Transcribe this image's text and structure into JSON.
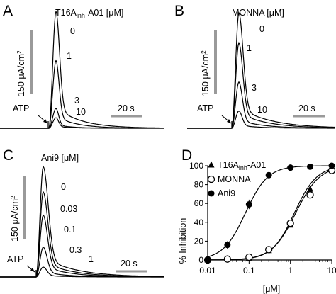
{
  "panels": [
    {
      "letter": "A",
      "title": "T16A",
      "title_sub": "inh",
      "title_rest": "-A01 [μM]",
      "scale_y": "150 μA/cm",
      "scale_y_sup": "2",
      "scale_x": "20 s",
      "stimulus": "ATP",
      "trace_labels": [
        "0",
        "1",
        "3",
        "10"
      ],
      "peaks_fraction": [
        1.0,
        0.58,
        0.17,
        0.09
      ]
    },
    {
      "letter": "B",
      "title": "MONNA [μM]",
      "scale_y": "150 μA/cm",
      "scale_y_sup": "2",
      "scale_x": "20 s",
      "stimulus": "ATP",
      "trace_labels": [
        "0",
        "1",
        "3",
        "10"
      ],
      "peaks_fraction": [
        1.0,
        0.74,
        0.4,
        0.15
      ]
    },
    {
      "letter": "C",
      "title": "Ani9 [μM]",
      "scale_y": "150 μA/cm",
      "scale_y_sup": "2",
      "scale_x": "20 s",
      "stimulus": "ATP",
      "trace_labels": [
        "0",
        "0.03",
        "0.1",
        "0.3",
        "1"
      ],
      "peaks_fraction": [
        1.0,
        0.77,
        0.56,
        0.27,
        0.09
      ]
    }
  ],
  "chart_data": {
    "type": "scatter",
    "panel_letter": "D",
    "xlabel": "[μM]",
    "ylabel": "% Inhibition",
    "xscale": "log",
    "xlim": [
      0.01,
      10
    ],
    "ylim": [
      0,
      100
    ],
    "xticks": [
      "0.01",
      "0.1",
      "1",
      "10"
    ],
    "yticks": [
      "0",
      "20",
      "40",
      "60",
      "80",
      "100"
    ],
    "legend_position": "top-left",
    "x": [
      0.01,
      0.03,
      0.1,
      0.3,
      1,
      3,
      10
    ],
    "series": [
      {
        "name_main": "T16A",
        "name_sub": "inh",
        "name_rest": "-A01",
        "marker": "triangle",
        "values": [
          0,
          1,
          2,
          10,
          37,
          75,
          97
        ]
      },
      {
        "name_main": "MONNA",
        "marker": "open-circle",
        "values": [
          0,
          1,
          3,
          11,
          39,
          69,
          95
        ]
      },
      {
        "name_main": "Ani9",
        "marker": "filled-circle",
        "values": [
          0,
          16,
          59,
          90,
          98,
          99,
          100
        ],
        "errors": [
          0,
          4,
          5,
          2,
          1,
          1,
          0
        ]
      }
    ]
  }
}
